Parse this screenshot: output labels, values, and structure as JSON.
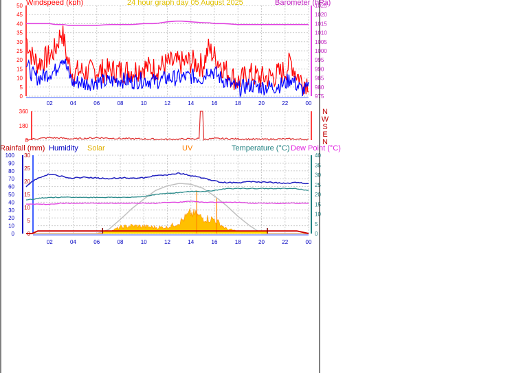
{
  "header": {
    "windspeed_label": "Windspeed (kph)",
    "title": "24 hour graph day  05 August  2025",
    "barometer_label": "Barometer (hPa)"
  },
  "legend": {
    "rainfall": "Rainfall (mm)",
    "humidity": "Humidity",
    "solar": "Solar",
    "uv": "UV",
    "temperature": "Temperature (°C)",
    "dewpoint": "Dew Point (°C)"
  },
  "colors": {
    "wind_gust": "#ff0000",
    "wind_avg": "#0000ff",
    "barometer": "#e040e0",
    "direction": "#e03030",
    "rain": "#cc0000",
    "humidity": "#2020c0",
    "solar_fill": "#ffc000",
    "solar_max": "#c0c0c0",
    "uv": "#ff8000",
    "temperature": "#2a8a8a",
    "dewpoint": "#e040e0",
    "grid": "#cccccc",
    "axis_left": "#ff4040",
    "axis_right": "#e040e0"
  },
  "chart_data": [
    {
      "type": "line",
      "name": "wind",
      "x_ticks": [
        "02",
        "04",
        "06",
        "08",
        "10",
        "12",
        "14",
        "16",
        "18",
        "20",
        "22",
        "00"
      ],
      "y_left_ticks": [
        0,
        5,
        10,
        15,
        20,
        25,
        30,
        35,
        40,
        45,
        50
      ],
      "y_left_range": [
        0,
        50
      ],
      "y_right_ticks": [
        975,
        980,
        985,
        990,
        995,
        1000,
        1005,
        1010,
        1015,
        1020,
        1025
      ],
      "y_right_range": [
        975,
        1025
      ],
      "grid": true,
      "hours": [
        0,
        0.5,
        1,
        1.5,
        2,
        2.5,
        3,
        3.25,
        3.5,
        4,
        4.5,
        5,
        6,
        7,
        8,
        9,
        10,
        11,
        12,
        13,
        14,
        15,
        15.5,
        16,
        16.5,
        17,
        18,
        18.5,
        19,
        20,
        21,
        22,
        22.5,
        23,
        23.5,
        24
      ],
      "series": [
        {
          "values": [
            32,
            22,
            18,
            20,
            22,
            26,
            36,
            30,
            20,
            12,
            14,
            13,
            14,
            14,
            14,
            14,
            16,
            15,
            18,
            18,
            19,
            17,
            26,
            22,
            18,
            14,
            8,
            10,
            12,
            10,
            11,
            14,
            19,
            12,
            8,
            8
          ]
        },
        {
          "values": [
            18,
            12,
            10,
            11,
            13,
            14,
            22,
            20,
            14,
            7,
            8,
            7,
            8,
            8,
            9,
            8,
            9,
            8,
            10,
            10,
            11,
            10,
            15,
            13,
            10,
            8,
            4,
            5,
            6,
            5,
            5,
            7,
            10,
            6,
            3,
            4
          ]
        },
        {
          "values": [
            1015,
            1015,
            1015,
            1015,
            1015,
            1014.5,
            1014.5,
            1014.5,
            1014,
            1014,
            1014,
            1014,
            1014,
            1014.5,
            1014.5,
            1014.5,
            1015,
            1015,
            1016,
            1016.5,
            1016,
            1015.5,
            1015.5,
            1015,
            1015,
            1015,
            1014.5,
            1014.5,
            1014.5,
            1014.5,
            1014.5,
            1014.5,
            1014.5,
            1014.5,
            1014.5,
            1014.5
          ]
        }
      ]
    },
    {
      "type": "line",
      "name": "wind_direction",
      "y_ticks": [
        0,
        180,
        360
      ],
      "y_range": [
        0,
        360
      ],
      "compass_labels": [
        "N",
        "W",
        "S",
        "E",
        "N"
      ],
      "hours": [
        0,
        1,
        2,
        3,
        4,
        6,
        8,
        10,
        12,
        14,
        14.7,
        14.8,
        15,
        15.1,
        16,
        18,
        20,
        22,
        24
      ],
      "values": [
        5,
        20,
        30,
        25,
        15,
        30,
        20,
        15,
        10,
        15,
        20,
        360,
        360,
        10,
        20,
        15,
        10,
        15,
        10
      ]
    },
    {
      "type": "area",
      "name": "rain_humidity_solar_uv_temp",
      "y_humidity_ticks": [
        0,
        10,
        20,
        30,
        40,
        50,
        60,
        70,
        80,
        90,
        100
      ],
      "y_humidity_range": [
        0,
        100
      ],
      "y_rain_ticks": [
        0,
        5,
        10,
        15,
        20,
        25,
        30
      ],
      "y_rain_range": [
        0,
        30
      ],
      "y_temp_ticks": [
        0,
        5,
        10,
        15,
        20,
        25,
        30,
        35,
        40
      ],
      "y_temp_range": [
        0,
        40
      ],
      "hours": [
        0,
        0.5,
        1,
        2,
        3,
        4,
        5,
        6,
        7,
        8,
        9,
        10,
        11,
        12,
        13,
        14,
        15,
        16,
        17,
        18,
        19,
        20,
        21,
        22,
        23,
        24
      ],
      "humidity": [
        60,
        66,
        71,
        76,
        73,
        71,
        72,
        71,
        70,
        71,
        71,
        71,
        74,
        75,
        77,
        74,
        71,
        67,
        65,
        65,
        66,
        66,
        65,
        64,
        65,
        64
      ],
      "temperature": [
        17,
        17.5,
        18,
        18.5,
        18.5,
        18.5,
        18.5,
        18.5,
        18.5,
        18.5,
        18.5,
        19,
        20,
        20.5,
        21,
        21.5,
        21.5,
        22,
        23,
        23,
        23,
        23,
        23,
        23,
        23,
        22
      ],
      "dewpoint": [
        15,
        15,
        15,
        15,
        15.5,
        15.5,
        15.5,
        15.5,
        15.5,
        15.5,
        15.5,
        15.5,
        15.5,
        16,
        16,
        16.5,
        16,
        16,
        16,
        16,
        15.5,
        15.5,
        15.5,
        15.5,
        15.5,
        15.5
      ],
      "rain": [
        0,
        0,
        1,
        1,
        1,
        1,
        1,
        1,
        1,
        1,
        1,
        1,
        1,
        1,
        1,
        1,
        1,
        1,
        1,
        1,
        1,
        1,
        1,
        1,
        1,
        0
      ],
      "solar_max": [
        0,
        0,
        0,
        0,
        0,
        0,
        0,
        0,
        5,
        18,
        32,
        44,
        55,
        61,
        64,
        63,
        58,
        48,
        36,
        22,
        10,
        0,
        0,
        0,
        0,
        0
      ],
      "solar": [
        0,
        0,
        0,
        0,
        0,
        0,
        0,
        0,
        2,
        8,
        10,
        9,
        8,
        8,
        14,
        26,
        20,
        18,
        6,
        3,
        1,
        0,
        0,
        0,
        0,
        0
      ],
      "uv_peak_hours": [
        14.5,
        16.2
      ],
      "uv_peak_values": [
        5.5,
        4.5
      ]
    }
  ]
}
